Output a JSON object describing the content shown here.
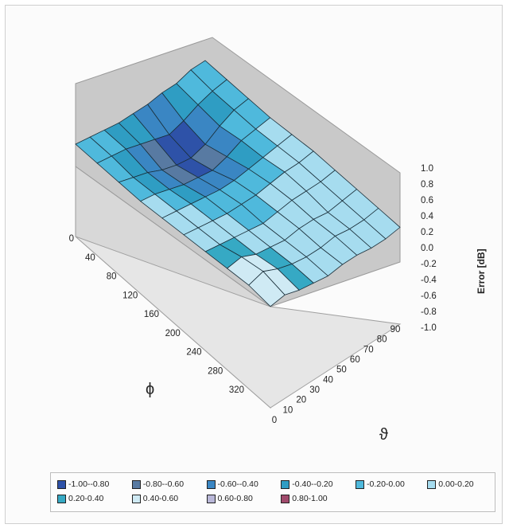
{
  "chart_data": {
    "type": "surface",
    "title": "",
    "zlabel": "Error [dB]",
    "phi_label": "ϕ",
    "theta_label": "ϑ",
    "zlim": [
      -1.0,
      1.0
    ],
    "z_ticks": [
      "1.0",
      "0.8",
      "0.6",
      "0.4",
      "0.2",
      "0.0",
      "-0.2",
      "-0.4",
      "-0.6",
      "-0.8",
      "-1.0"
    ],
    "phi_ticks": [
      "0",
      "40",
      "80",
      "120",
      "160",
      "200",
      "240",
      "280",
      "320"
    ],
    "theta_ticks": [
      "0",
      "10",
      "20",
      "30",
      "40",
      "50",
      "60",
      "70",
      "80",
      "90"
    ],
    "phi_values": [
      0,
      40,
      80,
      120,
      160,
      200,
      240,
      280,
      320,
      360
    ],
    "theta_values": [
      0,
      10,
      20,
      30,
      40,
      50,
      60,
      70,
      80,
      90
    ],
    "z_values": [
      [
        0.0,
        -0.1,
        -0.2,
        -0.3,
        -0.3,
        -0.3,
        -0.2,
        -0.2,
        0.0,
        0.0
      ],
      [
        0.0,
        -0.1,
        -0.2,
        -0.4,
        -0.6,
        -0.8,
        -0.6,
        -0.3,
        -0.1,
        0.0
      ],
      [
        0.0,
        -0.2,
        -0.4,
        -0.7,
        -0.9,
        -1.0,
        -0.8,
        -0.4,
        -0.1,
        0.0
      ],
      [
        0.0,
        -0.1,
        -0.3,
        -0.5,
        -0.6,
        -0.7,
        -0.5,
        -0.2,
        -0.1,
        0.0
      ],
      [
        0.1,
        0.0,
        -0.1,
        -0.2,
        -0.3,
        -0.3,
        -0.2,
        -0.1,
        0.0,
        0.1
      ],
      [
        0.2,
        0.1,
        0.0,
        -0.1,
        -0.1,
        -0.1,
        0.0,
        0.1,
        0.1,
        0.2
      ],
      [
        0.3,
        0.2,
        0.1,
        0.0,
        -0.1,
        0.0,
        0.1,
        0.1,
        0.1,
        0.2
      ],
      [
        0.4,
        0.5,
        0.2,
        0.1,
        0.0,
        0.1,
        0.1,
        0.0,
        0.1,
        0.2
      ],
      [
        0.5,
        0.7,
        0.4,
        0.2,
        0.1,
        0.1,
        0.2,
        0.1,
        0.1,
        0.2
      ],
      [
        0.4,
        0.5,
        0.3,
        0.2,
        0.1,
        0.2,
        0.2,
        0.1,
        0.1,
        0.2
      ]
    ],
    "legend": {
      "position": "bottom",
      "items": [
        {
          "label": "-1.00--0.80",
          "color": "#2e52a8"
        },
        {
          "label": "-0.80--0.60",
          "color": "#587aa2"
        },
        {
          "label": "-0.60--0.40",
          "color": "#3a86c3"
        },
        {
          "label": "-0.40--0.20",
          "color": "#2f9dc3"
        },
        {
          "label": "-0.20-0.00",
          "color": "#4fb9dc"
        },
        {
          "label": "0.00-0.20",
          "color": "#a6dcef"
        },
        {
          "label": "0.20-0.40",
          "color": "#36a9c4"
        },
        {
          "label": "0.40-0.60",
          "color": "#cfeaf4"
        },
        {
          "label": "0.60-0.80",
          "color": "#b9b7d8"
        },
        {
          "label": "0.80-1.00",
          "color": "#a04a6c"
        }
      ]
    }
  }
}
